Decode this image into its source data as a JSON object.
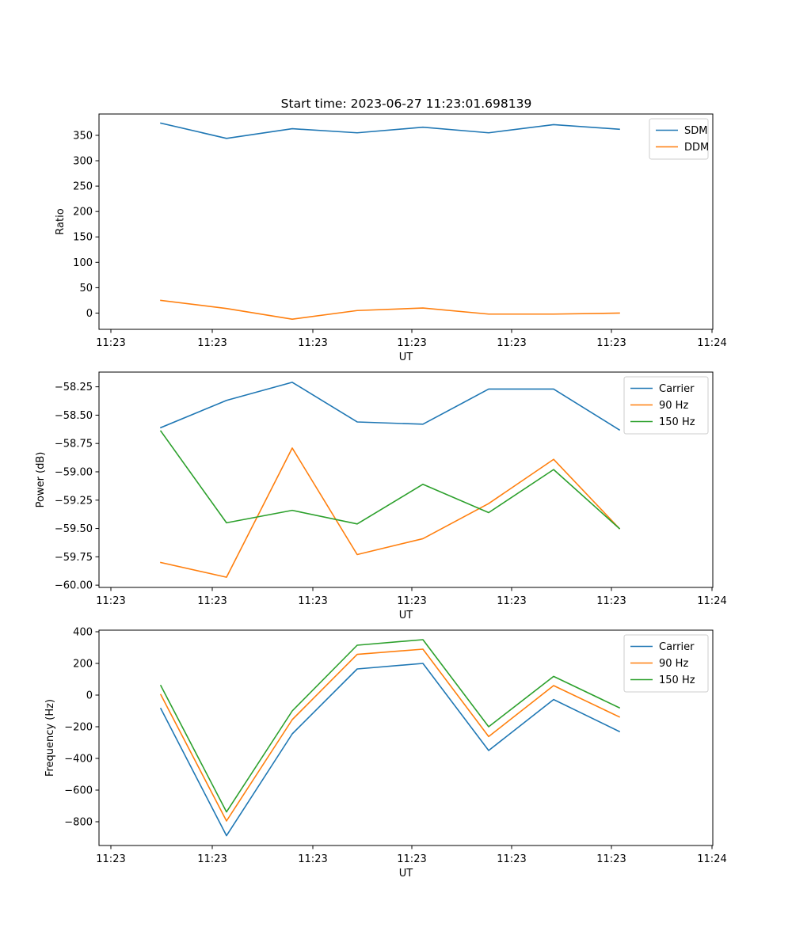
{
  "figure_title": "Start time: 2023-06-27 11:23:01.698139",
  "chart_data": [
    {
      "type": "line",
      "title": "Start time: 2023-06-27 11:23:01.698139",
      "xlabel": "UT",
      "ylabel": "Ratio",
      "x_tick_labels": [
        "11:23",
        "11:23",
        "11:23",
        "11:23",
        "11:23",
        "11:23",
        "11:24"
      ],
      "ylim": [
        -32,
        392
      ],
      "yticks": [
        0,
        50,
        100,
        150,
        200,
        250,
        300,
        350
      ],
      "ytick_labels": [
        "0",
        "50",
        "100",
        "150",
        "200",
        "250",
        "300",
        "350"
      ],
      "legend_position": "upper-right",
      "series": [
        {
          "name": "SDM",
          "color": "#1f77b4",
          "values": [
            374,
            344,
            363,
            355,
            366,
            355,
            371,
            362
          ]
        },
        {
          "name": "DDM",
          "color": "#ff7f0e",
          "values": [
            25,
            9,
            -12,
            5,
            10,
            -2,
            -2,
            0
          ]
        }
      ]
    },
    {
      "type": "line",
      "title": "",
      "xlabel": "UT",
      "ylabel": "Power (dB)",
      "x_tick_labels": [
        "11:23",
        "11:23",
        "11:23",
        "11:23",
        "11:23",
        "11:23",
        "11:24"
      ],
      "ylim": [
        -60.02,
        -58.12
      ],
      "yticks": [
        -60.0,
        -59.75,
        -59.5,
        -59.25,
        -59.0,
        -58.75,
        -58.5,
        -58.25
      ],
      "ytick_labels": [
        "−60.00",
        "−59.75",
        "−59.50",
        "−59.25",
        "−59.00",
        "−58.75",
        "−58.50",
        "−58.25"
      ],
      "legend_position": "upper-right",
      "series": [
        {
          "name": "Carrier",
          "color": "#1f77b4",
          "values": [
            -58.61,
            -58.37,
            -58.21,
            -58.56,
            -58.58,
            -58.27,
            -58.27,
            -58.63
          ]
        },
        {
          "name": "90 Hz",
          "color": "#ff7f0e",
          "values": [
            -59.8,
            -59.93,
            -58.79,
            -59.73,
            -59.59,
            -59.28,
            -58.89,
            -59.5
          ]
        },
        {
          "name": "150 Hz",
          "color": "#2ca02c",
          "values": [
            -58.64,
            -59.45,
            -59.34,
            -59.46,
            -59.11,
            -59.36,
            -58.98,
            -59.5
          ]
        }
      ]
    },
    {
      "type": "line",
      "title": "",
      "xlabel": "UT",
      "ylabel": "Frequency (Hz)",
      "x_tick_labels": [
        "11:23",
        "11:23",
        "11:23",
        "11:23",
        "11:23",
        "11:23",
        "11:24"
      ],
      "ylim": [
        -950,
        410
      ],
      "yticks": [
        -800,
        -600,
        -400,
        -200,
        0,
        200,
        400
      ],
      "ytick_labels": [
        "−800",
        "−600",
        "−400",
        "−200",
        "0",
        "200",
        "400"
      ],
      "legend_position": "upper-right",
      "series": [
        {
          "name": "Carrier",
          "color": "#1f77b4",
          "values": [
            -85,
            -888,
            -245,
            165,
            200,
            -350,
            -28,
            -230
          ]
        },
        {
          "name": "90 Hz",
          "color": "#ff7f0e",
          "values": [
            3,
            -795,
            -155,
            257,
            290,
            -262,
            60,
            -138
          ]
        },
        {
          "name": "150 Hz",
          "color": "#2ca02c",
          "values": [
            60,
            -738,
            -100,
            315,
            350,
            -200,
            118,
            -80
          ]
        }
      ]
    }
  ]
}
